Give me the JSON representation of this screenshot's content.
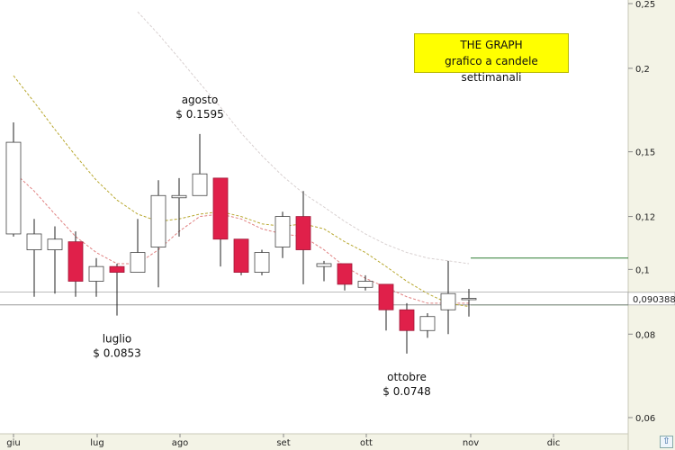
{
  "chart_data": {
    "type": "candlestick",
    "title": "THE GRAPH",
    "subtitle": "grafico a candele settimanali",
    "y_scale": "log",
    "ylim": [
      0.056,
      0.25
    ],
    "y_ticks": [
      {
        "value": 0.25,
        "label": "0,25"
      },
      {
        "value": 0.2,
        "label": "0,2"
      },
      {
        "value": 0.15,
        "label": "0,15"
      },
      {
        "value": 0.12,
        "label": "0,12"
      },
      {
        "value": 0.1,
        "label": "0,1"
      },
      {
        "value": 0.08,
        "label": "0,08"
      },
      {
        "value": 0.06,
        "label": "0,06"
      }
    ],
    "x_ticks": [
      "giu",
      "lug",
      "ago",
      "set",
      "ott",
      "nov",
      "dic"
    ],
    "last_price_label": "0,090388",
    "last_price": 0.0904,
    "candles": [
      {
        "open": 0.113,
        "high": 0.166,
        "low": 0.112,
        "close": 0.155
      },
      {
        "open": 0.107,
        "high": 0.119,
        "low": 0.091,
        "close": 0.113
      },
      {
        "open": 0.107,
        "high": 0.116,
        "low": 0.092,
        "close": 0.111
      },
      {
        "open": 0.11,
        "high": 0.114,
        "low": 0.091,
        "close": 0.096
      },
      {
        "open": 0.096,
        "high": 0.104,
        "low": 0.091,
        "close": 0.101
      },
      {
        "open": 0.101,
        "high": 0.102,
        "low": 0.0853,
        "close": 0.099
      },
      {
        "open": 0.099,
        "high": 0.119,
        "low": 0.099,
        "close": 0.106
      },
      {
        "open": 0.108,
        "high": 0.136,
        "low": 0.094,
        "close": 0.129
      },
      {
        "open": 0.128,
        "high": 0.137,
        "low": 0.112,
        "close": 0.129
      },
      {
        "open": 0.129,
        "high": 0.1595,
        "low": 0.129,
        "close": 0.139
      },
      {
        "open": 0.137,
        "high": 0.137,
        "low": 0.101,
        "close": 0.111
      },
      {
        "open": 0.111,
        "high": 0.111,
        "low": 0.098,
        "close": 0.099
      },
      {
        "open": 0.099,
        "high": 0.107,
        "low": 0.098,
        "close": 0.106
      },
      {
        "open": 0.108,
        "high": 0.122,
        "low": 0.104,
        "close": 0.12
      },
      {
        "open": 0.12,
        "high": 0.131,
        "low": 0.095,
        "close": 0.107
      },
      {
        "open": 0.101,
        "high": 0.103,
        "low": 0.096,
        "close": 0.102
      },
      {
        "open": 0.102,
        "high": 0.102,
        "low": 0.093,
        "close": 0.095
      },
      {
        "open": 0.094,
        "high": 0.098,
        "low": 0.093,
        "close": 0.096
      },
      {
        "open": 0.095,
        "high": 0.095,
        "low": 0.081,
        "close": 0.087
      },
      {
        "open": 0.087,
        "high": 0.089,
        "low": 0.0748,
        "close": 0.081
      },
      {
        "open": 0.081,
        "high": 0.086,
        "low": 0.079,
        "close": 0.085
      },
      {
        "open": 0.087,
        "high": 0.103,
        "low": 0.08,
        "close": 0.092
      },
      {
        "open": 0.0904,
        "high": 0.0935,
        "low": 0.085,
        "close": 0.0905
      }
    ],
    "moving_averages": [
      {
        "color": "#b8a830",
        "values": [
          0.195,
          0.178,
          0.162,
          0.148,
          0.136,
          0.127,
          0.121,
          0.118,
          0.119,
          0.121,
          0.122,
          0.12,
          0.117,
          0.116,
          0.117,
          0.115,
          0.11,
          0.106,
          0.101,
          0.096,
          0.092,
          0.089,
          0.088
        ]
      },
      {
        "color": "#d8d0d0",
        "values": [
          null,
          null,
          null,
          null,
          null,
          null,
          0.243,
          0.225,
          0.207,
          0.19,
          0.175,
          0.16,
          0.148,
          0.138,
          0.13,
          0.124,
          0.118,
          0.113,
          0.109,
          0.106,
          0.104,
          0.103,
          0.102
        ]
      },
      {
        "color": "#e08080",
        "values": [
          0.14,
          0.131,
          0.121,
          0.112,
          0.106,
          0.102,
          0.102,
          0.107,
          0.114,
          0.12,
          0.121,
          0.119,
          0.115,
          0.113,
          0.112,
          0.107,
          0.101,
          0.097,
          0.094,
          0.091,
          0.089,
          0.089,
          0.089
        ]
      }
    ],
    "reference_lines": [
      {
        "value": 0.104,
        "color": "#2e7d32"
      },
      {
        "value": 0.0885,
        "color": "#2e7d32"
      },
      {
        "value": 0.0925,
        "color": "#bbbbbb"
      },
      {
        "value": 0.0885,
        "color": "#999999"
      }
    ],
    "annotations": [
      {
        "candle": 9,
        "lines": [
          "agosto",
          "$ 0.1595"
        ],
        "position": "above"
      },
      {
        "candle": 5,
        "lines": [
          "luglio",
          "$ 0.0853"
        ],
        "position": "below"
      },
      {
        "candle": 19,
        "lines": [
          "ottobre",
          "$ 0.0748"
        ],
        "position": "below"
      }
    ],
    "colors": {
      "bear": "#e0204a",
      "bull": "#ffffff",
      "axis_bg": "#f3f3e6"
    }
  },
  "nav_icon": "up-arrow-icon"
}
